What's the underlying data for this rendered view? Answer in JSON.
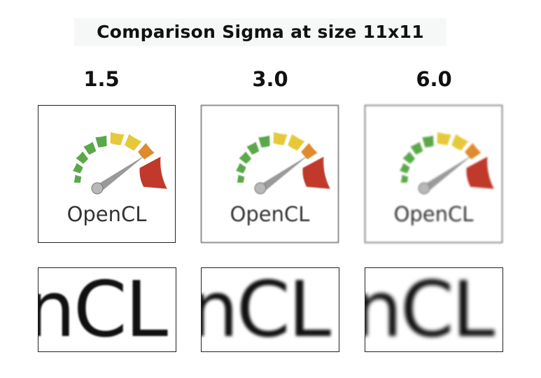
{
  "title": "Comparison Sigma at size 11x11",
  "panels": [
    {
      "sigma": "1.5",
      "logo_text": "OpenCL",
      "crop_text": "nCL"
    },
    {
      "sigma": "3.0",
      "logo_text": "OpenCL",
      "crop_text": "nCL"
    },
    {
      "sigma": "6.0",
      "logo_text": "OpenCL",
      "crop_text": "nCL"
    }
  ],
  "icons": {
    "logo": "opencl-gauge-logo"
  },
  "colors": {
    "gauge_green": "#5aa84a",
    "gauge_yellow": "#e6c93a",
    "gauge_orange": "#e08a2e",
    "gauge_red": "#c0392b",
    "needle": "#9a9a9a"
  }
}
